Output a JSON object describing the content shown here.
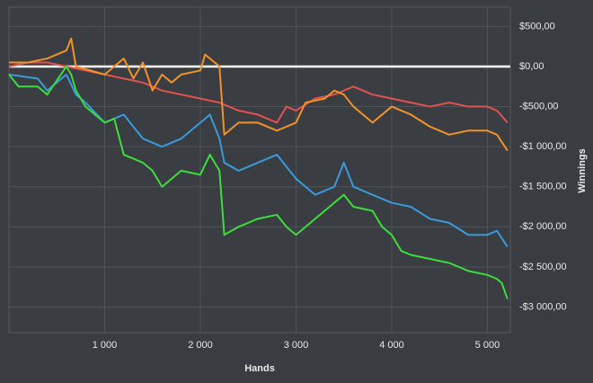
{
  "chart_data": {
    "type": "line",
    "x_label": "Hands",
    "y_label": "Winnings",
    "xlim": [
      0,
      5240
    ],
    "ylim": [
      -3320,
      740
    ],
    "xticks": [
      {
        "value": 1000,
        "label": "1 000"
      },
      {
        "value": 2000,
        "label": "2 000"
      },
      {
        "value": 3000,
        "label": "3 000"
      },
      {
        "value": 4000,
        "label": "4 000"
      },
      {
        "value": 5000,
        "label": "5 000"
      }
    ],
    "yticks": [
      {
        "value": 500,
        "label": "$500,00"
      },
      {
        "value": 0,
        "label": "$0,00"
      },
      {
        "value": -500,
        "label": "-$500,00"
      },
      {
        "value": -1000,
        "label": "-$1 000,00"
      },
      {
        "value": -1500,
        "label": "-$1 500,00"
      },
      {
        "value": -2000,
        "label": "-$2 000,00"
      },
      {
        "value": -2500,
        "label": "-$2 500,00"
      },
      {
        "value": -3000,
        "label": "-$3 000,00"
      }
    ],
    "grid": true,
    "series": [
      {
        "color": "#e05252",
        "x": [
          0,
          200,
          400,
          600,
          800,
          1000,
          1200,
          1400,
          1600,
          1800,
          2000,
          2200,
          2400,
          2600,
          2800,
          2900,
          3000,
          3200,
          3400,
          3600,
          3800,
          4000,
          4200,
          4400,
          4600,
          4800,
          5000,
          5100,
          5210
        ],
        "values": [
          0,
          50,
          50,
          0,
          -50,
          -100,
          -150,
          -200,
          -300,
          -350,
          -400,
          -450,
          -550,
          -600,
          -700,
          -500,
          -550,
          -400,
          -350,
          -250,
          -350,
          -400,
          -450,
          -500,
          -450,
          -500,
          -500,
          -550,
          -700
        ]
      },
      {
        "color": "#f0922b",
        "x": [
          0,
          200,
          400,
          600,
          650,
          700,
          1000,
          1200,
          1300,
          1400,
          1500,
          1600,
          1700,
          1800,
          2000,
          2050,
          2200,
          2250,
          2400,
          2600,
          2800,
          3000,
          3100,
          3300,
          3400,
          3500,
          3600,
          3800,
          4000,
          4200,
          4400,
          4600,
          4800,
          5000,
          5100,
          5210
        ],
        "values": [
          50,
          50,
          100,
          200,
          350,
          0,
          -100,
          100,
          -150,
          50,
          -300,
          -100,
          -200,
          -100,
          -50,
          150,
          0,
          -850,
          -700,
          -700,
          -800,
          -700,
          -450,
          -400,
          -300,
          -350,
          -500,
          -700,
          -500,
          -600,
          -750,
          -850,
          -800,
          -800,
          -850,
          -1050
        ]
      },
      {
        "color": "#3a9ad9",
        "x": [
          0,
          300,
          400,
          500,
          600,
          700,
          800,
          1000,
          1100,
          1200,
          1400,
          1600,
          1800,
          2000,
          2100,
          2200,
          2250,
          2400,
          2600,
          2800,
          3000,
          3200,
          3400,
          3500,
          3600,
          3800,
          4000,
          4200,
          4400,
          4600,
          4800,
          5000,
          5100,
          5210
        ],
        "values": [
          -100,
          -150,
          -300,
          -200,
          -100,
          -350,
          -450,
          -700,
          -650,
          -600,
          -900,
          -1000,
          -900,
          -700,
          -600,
          -900,
          -1200,
          -1300,
          -1200,
          -1100,
          -1400,
          -1600,
          -1500,
          -1200,
          -1500,
          -1600,
          -1700,
          -1750,
          -1900,
          -1950,
          -2100,
          -2100,
          -2050,
          -2250
        ]
      },
      {
        "color": "#3ddc3d",
        "x": [
          0,
          100,
          300,
          400,
          600,
          650,
          700,
          800,
          1000,
          1100,
          1200,
          1400,
          1500,
          1600,
          1800,
          2000,
          2100,
          2150,
          2200,
          2250,
          2400,
          2600,
          2800,
          2900,
          3000,
          3200,
          3300,
          3500,
          3600,
          3800,
          3900,
          4000,
          4100,
          4200,
          4400,
          4600,
          4800,
          5000,
          5100,
          5150,
          5210
        ],
        "values": [
          -100,
          -250,
          -250,
          -350,
          0,
          -100,
          -300,
          -500,
          -700,
          -650,
          -1100,
          -1200,
          -1300,
          -1500,
          -1300,
          -1350,
          -1100,
          -1200,
          -1300,
          -2100,
          -2000,
          -1900,
          -1850,
          -2000,
          -2100,
          -1900,
          -1800,
          -1600,
          -1750,
          -1800,
          -2000,
          -2100,
          -2300,
          -2350,
          -2400,
          -2450,
          -2550,
          -2600,
          -2650,
          -2700,
          -2900
        ]
      }
    ]
  }
}
